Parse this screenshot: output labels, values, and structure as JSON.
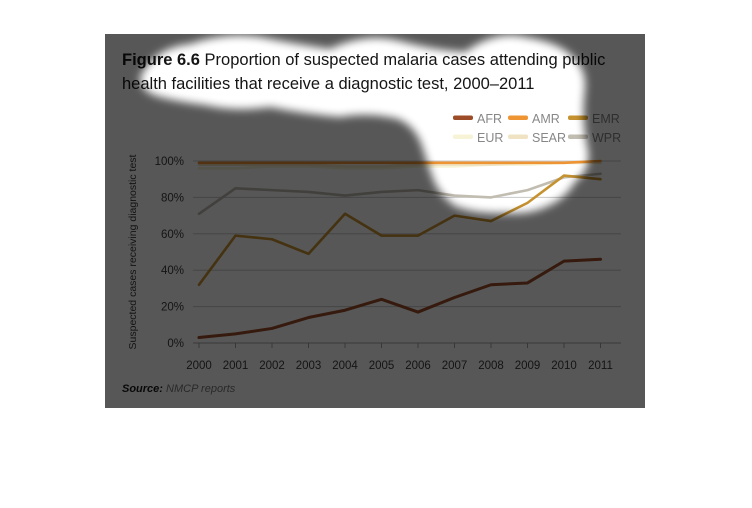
{
  "figure": {
    "title_prefix": "Figure 6.6",
    "title_rest_line1": " Proportion of suspected malaria cases attending public",
    "title_line2": "health facilities that receive a diagnostic test, 2000–2011",
    "source_label": "Source:",
    "source_text": " NMCP reports"
  },
  "chart_data": {
    "type": "line",
    "title": "Figure 6.6 Proportion of suspected malaria cases attending public health facilities that receive a diagnostic test, 2000–2011",
    "xlabel": "",
    "ylabel": "Suspected cases receiving diagnostic test",
    "x": [
      2000,
      2001,
      2002,
      2003,
      2004,
      2005,
      2006,
      2007,
      2008,
      2009,
      2010,
      2011
    ],
    "ylim": [
      0,
      100
    ],
    "yticks": [
      {
        "v": 0,
        "label": "0%"
      },
      {
        "v": 20,
        "label": "20%"
      },
      {
        "v": 40,
        "label": "40%"
      },
      {
        "v": 60,
        "label": "60%"
      },
      {
        "v": 80,
        "label": "80%"
      },
      {
        "v": 100,
        "label": "100%"
      }
    ],
    "grid": "horizontal",
    "legend_position": "top-right-two-rows",
    "series": [
      {
        "name": "AFR",
        "color": "#9c4c26",
        "values": [
          3,
          5,
          8,
          14,
          18,
          24,
          17,
          25,
          32,
          33,
          45,
          46
        ]
      },
      {
        "name": "AMR",
        "color": "#ef9433",
        "values": [
          99,
          99,
          99,
          99,
          99,
          99,
          99,
          99,
          99,
          99,
          99,
          100
        ]
      },
      {
        "name": "EMR",
        "color": "#c6922f",
        "values": [
          32,
          59,
          57,
          49,
          71,
          59,
          59,
          70,
          67,
          77,
          92,
          90
        ]
      },
      {
        "name": "EUR",
        "color": "#f7f3d6",
        "values": [
          96,
          96,
          97,
          97,
          96,
          96,
          97,
          97,
          98,
          98,
          99,
          99
        ]
      },
      {
        "name": "SEAR",
        "color": "#efe3c4",
        "values": [
          98,
          98,
          98,
          98,
          97,
          97,
          98,
          98,
          98,
          99,
          99,
          99
        ]
      },
      {
        "name": "WPR",
        "color": "#c2bdb1",
        "values": [
          71,
          85,
          84,
          83,
          81,
          83,
          84,
          81,
          80,
          84,
          91,
          93
        ]
      }
    ]
  },
  "colors": {
    "dim_overlay": "#000000",
    "dim_opacity": "0.655",
    "grid": "#c9c9c9",
    "axis": "#a3a3a3",
    "tick_text": "#3c3c3c",
    "legend_text": "#878787",
    "title_text": "#151515",
    "source_text": "#7a7a7a"
  }
}
